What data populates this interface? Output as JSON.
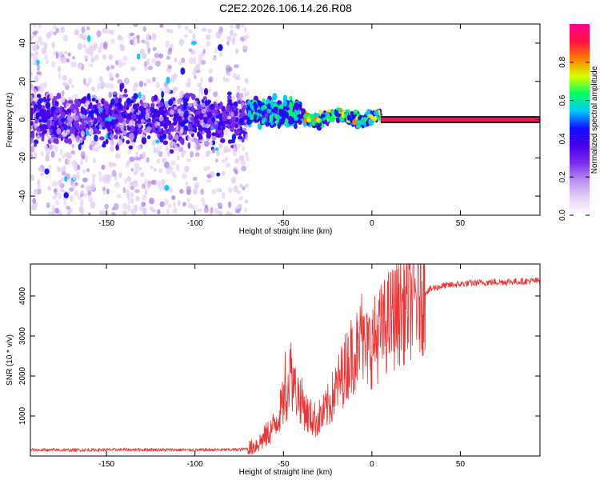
{
  "title": "C2E2.2026.106.14.26.R08",
  "colors": {
    "signal": "#ee3333",
    "frame": "#000000",
    "colormap": [
      "#ffffff",
      "#e6d0f7",
      "#b98ef0",
      "#7a2df0",
      "#4a00e8",
      "#1010ff",
      "#00c8ff",
      "#00ff60",
      "#d8ff00",
      "#ff8000",
      "#ff1040",
      "#ff0090"
    ]
  },
  "chart_data": [
    {
      "type": "heatmap",
      "title": "C2E2.2026.106.14.26.R08",
      "xlabel": "Height of straight line (km)",
      "ylabel": "Frequency (Hz)",
      "xlim": [
        -193,
        95
      ],
      "ylim": [
        -50,
        50
      ],
      "xticks": [
        -150,
        -100,
        -50,
        0,
        50
      ],
      "yticks": [
        -40,
        -20,
        0,
        20,
        40
      ],
      "grid": false,
      "colorbar": {
        "label": "Normalized spectral amplitude",
        "range": [
          0,
          1
        ],
        "ticks": [
          0.0,
          0.2,
          0.4,
          0.6,
          0.8
        ]
      },
      "regions": [
        {
          "x_range": [
            -193,
            -70
          ],
          "description_level": 0.15,
          "freq_center": 0,
          "freq_spread": 50
        },
        {
          "x_range": [
            -70,
            -40
          ],
          "description_level": 0.45,
          "freq_center": 4,
          "freq_spread": 8
        },
        {
          "x_range": [
            -40,
            5
          ],
          "description_level": 0.6,
          "freq_center": 1,
          "freq_spread": 4
        },
        {
          "x_range": [
            5,
            95
          ],
          "description_level": 0.95,
          "freq_center": 0,
          "freq_spread": 1
        }
      ]
    },
    {
      "type": "line",
      "xlabel": "Height of straight line (km)",
      "ylabel": "SNR (10 * v/v)",
      "xlim": [
        -193,
        95
      ],
      "ylim": [
        0,
        4800
      ],
      "xticks": [
        -150,
        -100,
        -50,
        0,
        50
      ],
      "yticks": [
        1000,
        2000,
        3000,
        4000
      ],
      "grid": false,
      "series": [
        {
          "x": [
            -193,
            -160,
            -130,
            -100,
            -75,
            -68,
            -62,
            -56,
            -52,
            -48,
            -46,
            -44,
            -40,
            -36,
            -32,
            -28,
            -24,
            -20,
            -16,
            -12,
            -8,
            -6,
            -4,
            0,
            5,
            10,
            15,
            20,
            25,
            30,
            35,
            40,
            50,
            60,
            70,
            80,
            95
          ],
          "y": [
            150,
            150,
            160,
            150,
            160,
            200,
            400,
            700,
            1100,
            1600,
            2200,
            1700,
            1400,
            1000,
            900,
            1000,
            1300,
            1700,
            2100,
            2500,
            2700,
            3000,
            2600,
            2800,
            3100,
            3400,
            3600,
            3800,
            3950,
            4100,
            4200,
            4250,
            4300,
            4330,
            4350,
            4360,
            4380
          ]
        }
      ]
    }
  ]
}
